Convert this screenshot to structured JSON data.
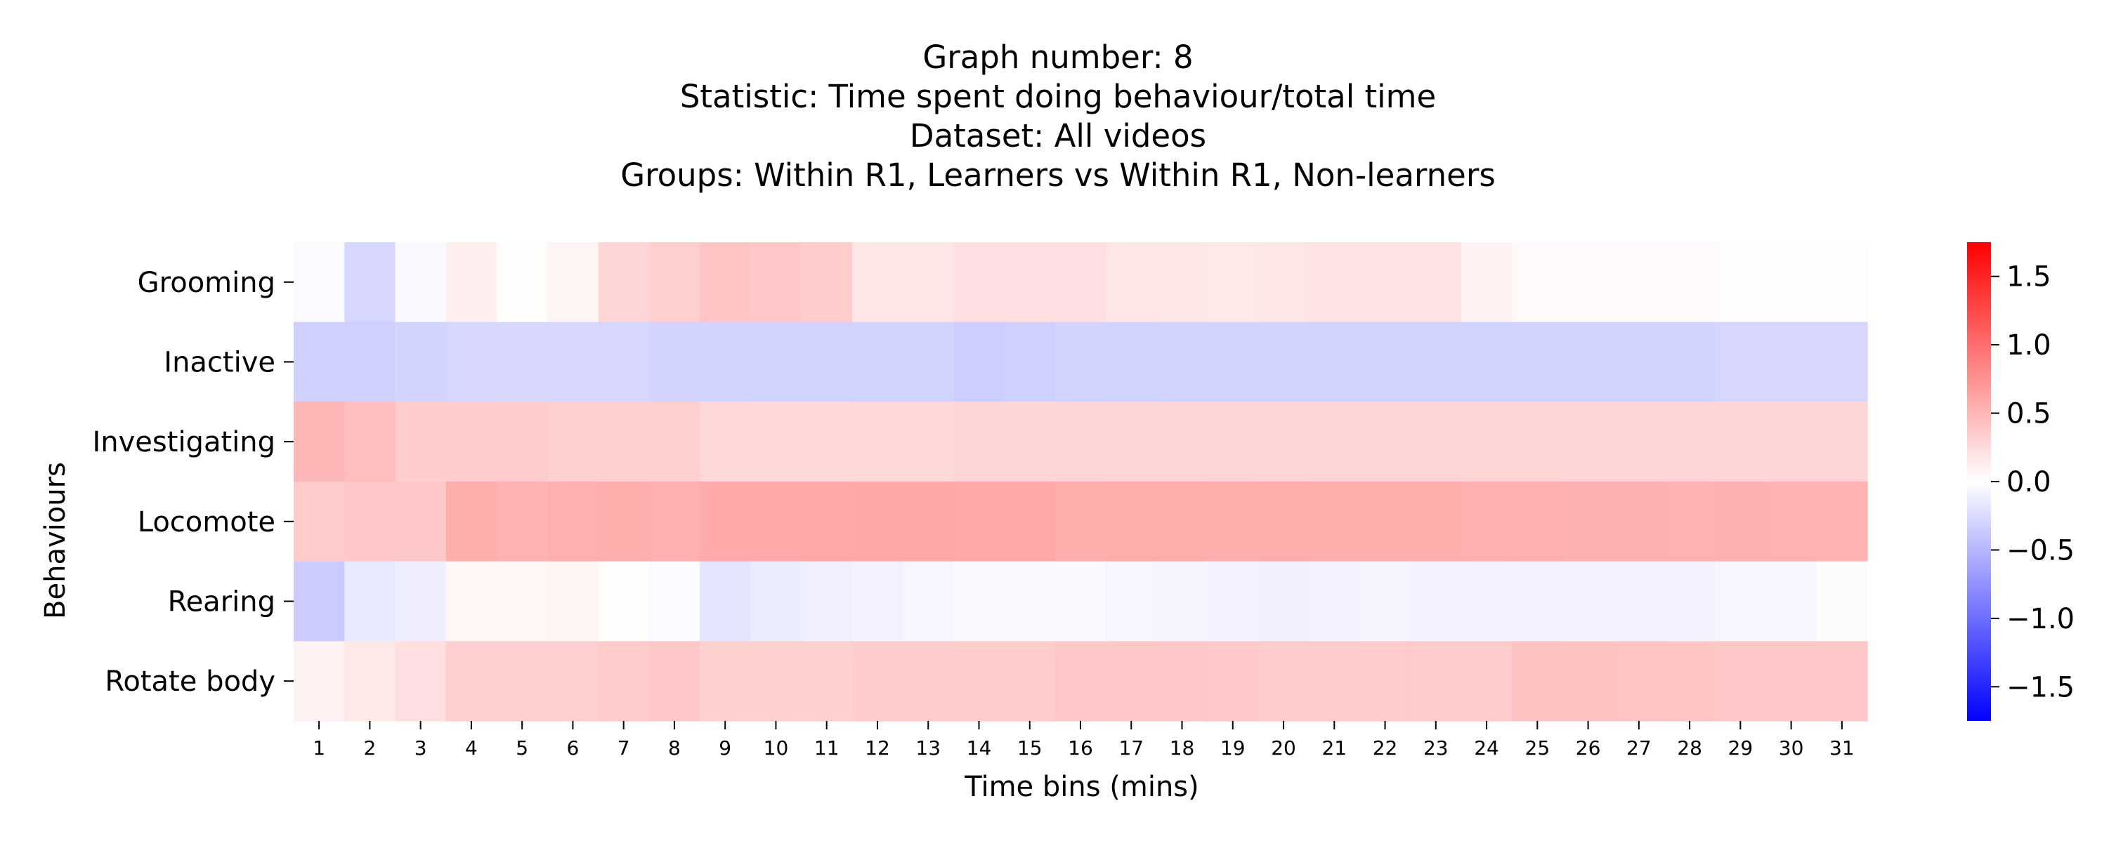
{
  "chart_data": {
    "type": "heatmap",
    "title_lines": [
      "Graph number: 8",
      "Statistic: Time spent doing behaviour/total time",
      "Dataset: All videos",
      "Groups: Within R1, Learners vs Within R1, Non-learners"
    ],
    "xlabel": "Time bins (mins)",
    "ylabel": "Behaviours",
    "x": [
      1,
      2,
      3,
      4,
      5,
      6,
      7,
      8,
      9,
      10,
      11,
      12,
      13,
      14,
      15,
      16,
      17,
      18,
      19,
      20,
      21,
      22,
      23,
      24,
      25,
      26,
      27,
      28,
      29,
      30,
      31
    ],
    "y": [
      "Grooming",
      "Inactive",
      "Investigating",
      "Locomote",
      "Rearing",
      "Rotate body"
    ],
    "colorbar": {
      "vmin": -1.75,
      "vmax": 1.75,
      "ticks": [
        1.5,
        1.0,
        0.5,
        0.0,
        -0.5,
        -1.0,
        -1.5
      ],
      "tick_labels": [
        "1.5",
        "1.0",
        "0.5",
        "0.0",
        "−0.5",
        "−1.0",
        "−1.5"
      ],
      "colormap": "bwr"
    },
    "values": [
      [
        -0.03,
        -0.28,
        -0.04,
        0.12,
        0.02,
        0.07,
        0.28,
        0.33,
        0.4,
        0.38,
        0.35,
        0.18,
        0.18,
        0.22,
        0.22,
        0.22,
        0.18,
        0.17,
        0.16,
        0.17,
        0.19,
        0.2,
        0.2,
        0.09,
        0.04,
        0.04,
        0.04,
        0.04,
        0.02,
        0.02,
        0.02
      ],
      [
        -0.32,
        -0.32,
        -0.3,
        -0.28,
        -0.27,
        -0.27,
        -0.28,
        -0.3,
        -0.3,
        -0.31,
        -0.31,
        -0.3,
        -0.3,
        -0.34,
        -0.32,
        -0.3,
        -0.31,
        -0.3,
        -0.3,
        -0.3,
        -0.3,
        -0.3,
        -0.3,
        -0.3,
        -0.3,
        -0.3,
        -0.3,
        -0.3,
        -0.28,
        -0.28,
        -0.28
      ],
      [
        0.5,
        0.45,
        0.34,
        0.34,
        0.36,
        0.32,
        0.32,
        0.33,
        0.26,
        0.27,
        0.27,
        0.27,
        0.27,
        0.28,
        0.28,
        0.28,
        0.28,
        0.28,
        0.28,
        0.28,
        0.28,
        0.28,
        0.28,
        0.28,
        0.28,
        0.28,
        0.28,
        0.28,
        0.28,
        0.28,
        0.28
      ],
      [
        0.36,
        0.38,
        0.38,
        0.56,
        0.53,
        0.55,
        0.56,
        0.55,
        0.58,
        0.58,
        0.58,
        0.6,
        0.6,
        0.58,
        0.58,
        0.56,
        0.57,
        0.57,
        0.56,
        0.57,
        0.56,
        0.56,
        0.56,
        0.55,
        0.55,
        0.54,
        0.54,
        0.53,
        0.54,
        0.53,
        0.53
      ],
      [
        -0.36,
        -0.15,
        -0.12,
        0.06,
        0.06,
        0.07,
        0.02,
        -0.03,
        -0.18,
        -0.13,
        -0.11,
        -0.08,
        -0.06,
        -0.05,
        -0.05,
        -0.05,
        -0.06,
        -0.07,
        -0.08,
        -0.1,
        -0.08,
        -0.07,
        -0.09,
        -0.09,
        -0.09,
        -0.08,
        -0.08,
        -0.08,
        -0.06,
        -0.06,
        -0.02
      ],
      [
        0.09,
        0.16,
        0.22,
        0.33,
        0.33,
        0.33,
        0.36,
        0.38,
        0.32,
        0.32,
        0.32,
        0.35,
        0.35,
        0.36,
        0.36,
        0.38,
        0.38,
        0.38,
        0.37,
        0.36,
        0.36,
        0.36,
        0.36,
        0.36,
        0.42,
        0.42,
        0.41,
        0.4,
        0.38,
        0.38,
        0.38
      ]
    ]
  }
}
